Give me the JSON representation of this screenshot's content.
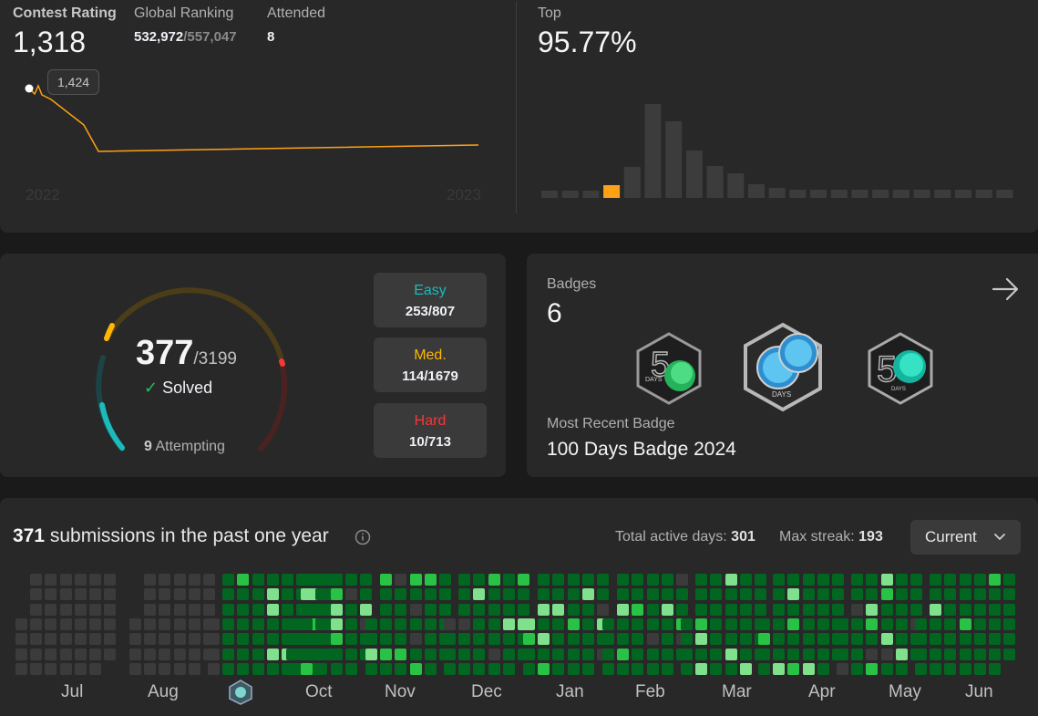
{
  "contest": {
    "rating_label": "Contest Rating",
    "rating_value": "1,318",
    "ranking_label": "Global Ranking",
    "ranking_value": "532,972",
    "ranking_total": "/557,047",
    "attended_label": "Attended",
    "attended_value": "8",
    "top_label": "Top",
    "top_value": "95.77%",
    "tooltip_value": "1,424",
    "year_start": "2022",
    "year_end": "2023",
    "histogram_bar_heights": [
      8,
      8,
      8,
      14,
      34,
      103,
      84,
      52,
      35,
      27,
      15,
      11,
      9,
      9,
      9,
      9,
      9,
      9,
      9,
      9,
      9,
      9,
      9
    ],
    "histogram_highlight_index": 3
  },
  "solved": {
    "count": "377",
    "total": "/3199",
    "solved_label": "Solved",
    "attempting_count": "9",
    "attempting_label": " Attempting",
    "easy_label": "Easy",
    "easy_value": "253/807",
    "medium_label": "Med.",
    "medium_value": "114/1679",
    "hard_label": "Hard",
    "hard_value": "10/713",
    "colors": {
      "easy": "#1cbaba",
      "medium": "#ffb700",
      "hard": "#f63737"
    }
  },
  "badges": {
    "label": "Badges",
    "count": "6",
    "recent_label": "Most Recent Badge",
    "recent_name": "100 Days Badge 2024",
    "badge_icons": [
      "50-days-badge-icon",
      "100-days-badge-icon",
      "50-days-badge-icon"
    ],
    "badge_text_50": "DAYS",
    "badge_text_100": "DAYS"
  },
  "submissions": {
    "count": "371",
    "label": " submissions in the past one year",
    "active_days_label": "Total active days: ",
    "active_days_value": "301",
    "max_streak_label": "Max streak: ",
    "max_streak_value": "193",
    "select_value": "Current",
    "months": [
      "Jul",
      "Aug",
      "Oct",
      "Nov",
      "Dec",
      "Jan",
      "Feb",
      "Mar",
      "Apr",
      "May",
      "Jun"
    ],
    "colors": {
      "empty": "#3b3b3b",
      "level1": "#016620",
      "level2": "#28c244",
      "level3": "#7fe18b"
    }
  }
}
